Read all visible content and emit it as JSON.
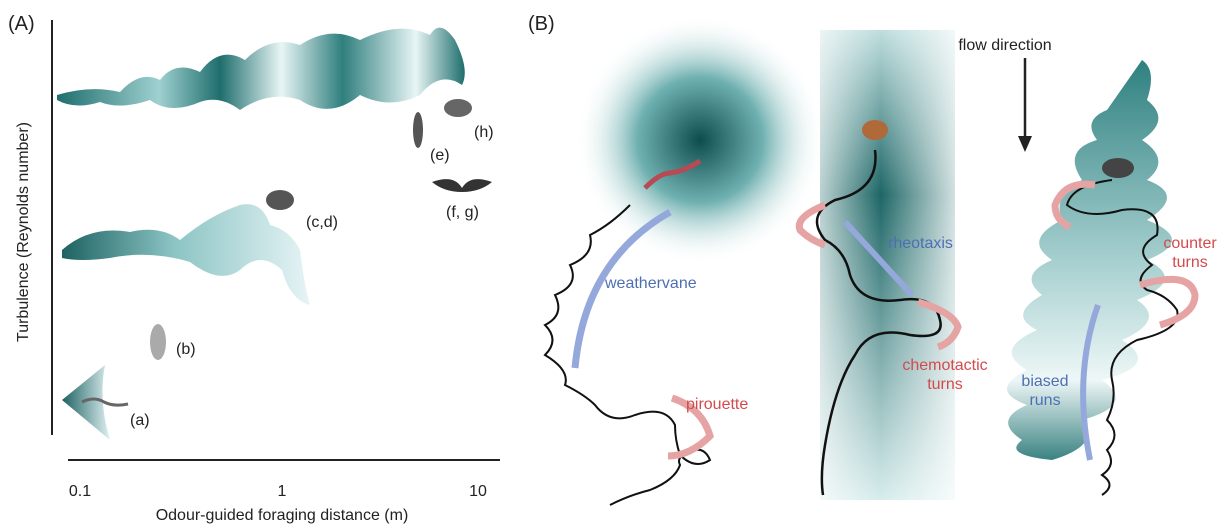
{
  "panel_a": {
    "label": "(A)",
    "y_axis_title": "Turbulence (Reynolds number)",
    "x_axis_title": "Odour-guided foraging distance (m)",
    "x_ticks": [
      "0.1",
      "1",
      "10"
    ],
    "organisms": {
      "a": "(a)",
      "b": "(b)",
      "cd": "(c,d)",
      "e": "(e)",
      "fg": "(f, g)",
      "h": "(h)"
    }
  },
  "panel_b": {
    "label": "(B)",
    "flow": "flow direction",
    "weathervane": "weathervane",
    "pirouette": "pirouette",
    "rheotaxis": "rheotaxis",
    "chemotactic_turns": [
      "chemotactic",
      "turns"
    ],
    "counter_turns": [
      "counter",
      "turns"
    ],
    "biased_runs": [
      "biased",
      "runs"
    ]
  }
}
